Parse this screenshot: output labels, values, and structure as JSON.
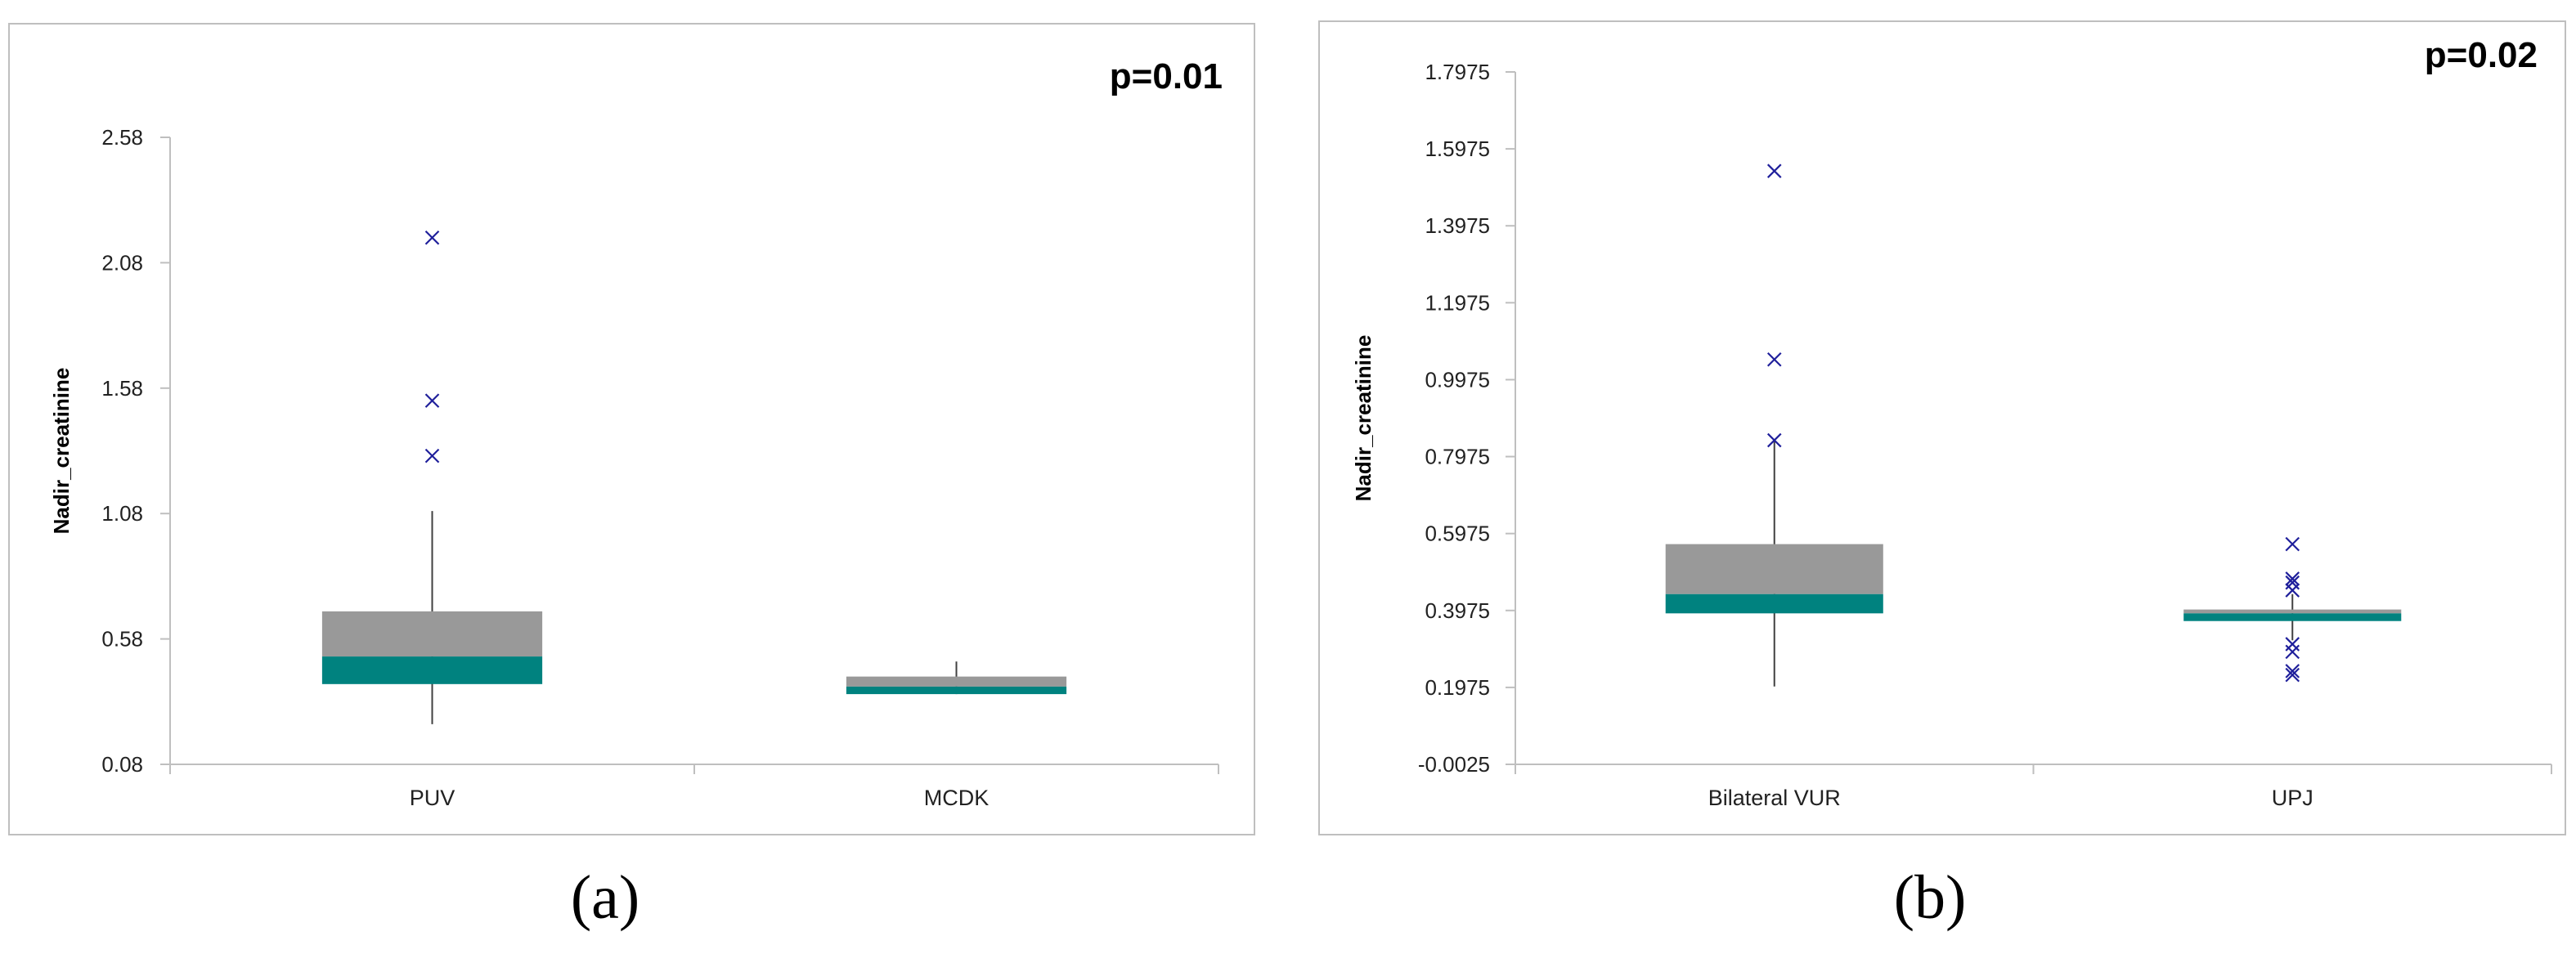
{
  "captions": {
    "a": "(a)",
    "b": "(b)"
  },
  "colors": {
    "upper_box": "#999999",
    "lower_box": "#00827f",
    "outlier": "#1f1f9b",
    "axis": "#bfbfbf",
    "whisker": "#404040"
  },
  "chart_data": [
    {
      "type": "box",
      "annotation": "p=0.01",
      "xlabel": "",
      "ylabel": "Nadir_creatinine",
      "ylim": [
        0.08,
        2.58
      ],
      "yticks": [
        "0.08",
        "0.58",
        "1.08",
        "1.58",
        "2.08",
        "2.58"
      ],
      "categories": [
        "PUV",
        "MCDK"
      ],
      "boxes": [
        {
          "category": "PUV",
          "whisker_low": 0.24,
          "q1": 0.4,
          "median": 0.51,
          "q3": 0.69,
          "whisker_high": 1.09,
          "outliers": [
            2.18,
            1.53,
            1.31
          ]
        },
        {
          "category": "MCDK",
          "whisker_low": 0.36,
          "q1": 0.36,
          "median": 0.39,
          "q3": 0.43,
          "whisker_high": 0.49,
          "outliers": []
        }
      ]
    },
    {
      "type": "box",
      "annotation": "p=0.02",
      "xlabel": "",
      "ylabel": "Nadir_creatinine",
      "ylim": [
        -0.0025,
        1.7975
      ],
      "yticks": [
        "-0.0025",
        "0.1975",
        "0.3975",
        "0.5975",
        "0.7975",
        "0.9975",
        "1.1975",
        "1.3975",
        "1.5975",
        "1.7975"
      ],
      "categories": [
        "Bilateral VUR",
        "UPJ"
      ],
      "boxes": [
        {
          "category": "Bilateral VUR",
          "whisker_low": 0.2,
          "q1": 0.39,
          "median": 0.44,
          "q3": 0.57,
          "whisker_high": 0.84,
          "outliers": [
            1.54,
            1.05,
            0.84
          ]
        },
        {
          "category": "UPJ",
          "whisker_low": 0.32,
          "q1": 0.37,
          "median": 0.39,
          "q3": 0.4,
          "whisker_high": 0.44,
          "outliers": [
            0.57,
            0.48,
            0.47,
            0.45,
            0.31,
            0.29,
            0.24,
            0.23
          ]
        }
      ]
    }
  ]
}
